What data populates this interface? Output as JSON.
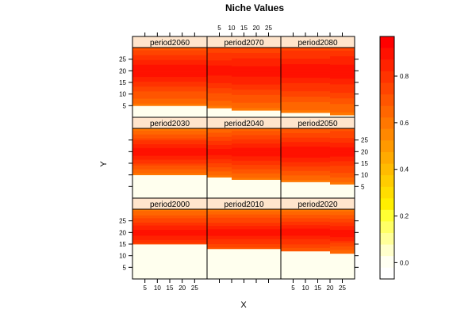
{
  "chart_data": {
    "type": "heatmap",
    "title": "Niche Values",
    "xlabel": "X",
    "ylabel": "Y",
    "xlim": [
      0,
      30
    ],
    "ylim": [
      0,
      30
    ],
    "x_ticks": [
      "5",
      "10",
      "15",
      "20",
      "25"
    ],
    "y_ticks": [
      "5",
      "10",
      "15",
      "20",
      "25"
    ],
    "layout": {
      "columns": 3,
      "rows": 3,
      "order": "bottom-left to top-right"
    },
    "colorbar": {
      "ticks": [
        "0.0",
        "0.2",
        "0.4",
        "0.6",
        "0.8"
      ],
      "tick_values": [
        0.0,
        0.2,
        0.4,
        0.6,
        0.8
      ],
      "range": [
        -0.07,
        0.97
      ]
    },
    "panels": [
      {
        "name": "period2000",
        "value_min": 0.6,
        "value_max": 0.92,
        "steps": [
          [
            0,
            15
          ],
          [
            30,
            15
          ]
        ]
      },
      {
        "name": "period2010",
        "value_min": 0.6,
        "value_max": 0.92,
        "steps": [
          [
            0,
            13
          ],
          [
            10,
            13
          ],
          [
            30,
            13
          ]
        ]
      },
      {
        "name": "period2020",
        "value_min": 0.6,
        "value_max": 0.92,
        "steps": [
          [
            0,
            12
          ],
          [
            20,
            11
          ],
          [
            30,
            11
          ]
        ]
      },
      {
        "name": "period2030",
        "value_min": 0.6,
        "value_max": 0.92,
        "steps": [
          [
            0,
            10
          ],
          [
            30,
            10
          ]
        ]
      },
      {
        "name": "period2040",
        "value_min": 0.6,
        "value_max": 0.92,
        "steps": [
          [
            0,
            9
          ],
          [
            10,
            8
          ],
          [
            30,
            8
          ]
        ]
      },
      {
        "name": "period2050",
        "value_min": 0.6,
        "value_max": 0.92,
        "steps": [
          [
            0,
            7
          ],
          [
            20,
            6
          ],
          [
            30,
            6
          ]
        ]
      },
      {
        "name": "period2060",
        "value_min": 0.6,
        "value_max": 0.92,
        "steps": [
          [
            0,
            5
          ],
          [
            30,
            5
          ]
        ]
      },
      {
        "name": "period2070",
        "value_min": 0.6,
        "value_max": 0.92,
        "steps": [
          [
            0,
            4
          ],
          [
            10,
            3
          ],
          [
            30,
            3
          ]
        ]
      },
      {
        "name": "period2080",
        "value_min": 0.6,
        "value_max": 0.92,
        "steps": [
          [
            0,
            2
          ],
          [
            20,
            1
          ],
          [
            30,
            1
          ]
        ]
      }
    ]
  },
  "colors": {
    "strip_bg": "#ffe5cc",
    "background_low": "#ffffee",
    "palette": [
      "#ffffff",
      "#fffff2",
      "#ffffcc",
      "#ffff99",
      "#ffff66",
      "#ffff33",
      "#ffee00",
      "#ffdd00",
      "#ffcc00",
      "#ffbb00",
      "#ffaa00",
      "#ff9900",
      "#ff8800",
      "#ff7700",
      "#ff6600",
      "#ff5500",
      "#ff4400",
      "#ff3300",
      "#ff2200",
      "#ff1100",
      "#ff0000"
    ]
  }
}
